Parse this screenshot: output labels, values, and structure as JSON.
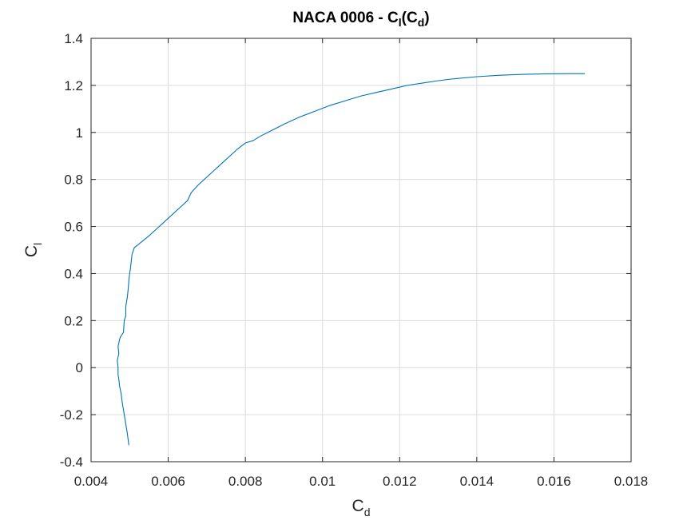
{
  "chart_data": {
    "type": "line",
    "title": {
      "main": "NACA 0006 - C",
      "sub1": "l",
      "mid": "(C",
      "sub2": "d",
      "end": ")"
    },
    "xlabel": {
      "main": "C",
      "sub": "d"
    },
    "ylabel": {
      "main": "C",
      "sub": "l"
    },
    "xlim": [
      0.004,
      0.018
    ],
    "ylim": [
      -0.4,
      1.4
    ],
    "xticks": [
      0.004,
      0.006,
      0.008,
      0.01,
      0.012,
      0.014,
      0.016,
      0.018
    ],
    "xtick_labels": [
      "0.004",
      "0.006",
      "0.008",
      "0.01",
      "0.012",
      "0.014",
      "0.016",
      "0.018"
    ],
    "yticks": [
      -0.4,
      -0.2,
      0,
      0.2,
      0.4,
      0.6,
      0.8,
      1,
      1.2,
      1.4
    ],
    "ytick_labels": [
      "-0.4",
      "-0.2",
      "0",
      "0.2",
      "0.4",
      "0.6",
      "0.8",
      "1",
      "1.2",
      "1.4"
    ],
    "grid": true,
    "colors": {
      "line": "#0072BD",
      "grid": "#dcdcdc",
      "axes": "#262626"
    },
    "series": [
      {
        "x": [
          0.00498,
          0.00494,
          0.0049,
          0.00486,
          0.00482,
          0.0048,
          0.00478,
          0.00474,
          0.00472,
          0.0047,
          0.0047,
          0.00468,
          0.00472,
          0.0047,
          0.00474,
          0.00476,
          0.0048,
          0.00484,
          0.00486,
          0.0049,
          0.0049,
          0.00494,
          0.00496,
          0.00498,
          0.005,
          0.00502,
          0.00506,
          0.00512,
          0.0052,
          0.00535,
          0.0055,
          0.0057,
          0.0059,
          0.0061,
          0.0063,
          0.0065,
          0.0066,
          0.0068,
          0.007,
          0.0072,
          0.0074,
          0.0076,
          0.0078,
          0.008,
          0.0082,
          0.0084,
          0.0087,
          0.009,
          0.0094,
          0.0098,
          0.0102,
          0.0106,
          0.011,
          0.0114,
          0.0118,
          0.0122,
          0.0126,
          0.013,
          0.0134,
          0.014,
          0.0146,
          0.0152,
          0.0158,
          0.0164,
          0.0168
        ],
        "y": [
          -0.33,
          -0.28,
          -0.24,
          -0.2,
          -0.16,
          -0.14,
          -0.11,
          -0.08,
          -0.05,
          -0.03,
          0.0,
          0.03,
          0.06,
          0.09,
          0.12,
          0.13,
          0.14,
          0.15,
          0.2,
          0.22,
          0.26,
          0.3,
          0.33,
          0.37,
          0.4,
          0.42,
          0.48,
          0.51,
          0.52,
          0.54,
          0.56,
          0.59,
          0.62,
          0.65,
          0.68,
          0.71,
          0.745,
          0.78,
          0.81,
          0.84,
          0.87,
          0.9,
          0.93,
          0.955,
          0.965,
          0.985,
          1.01,
          1.035,
          1.065,
          1.09,
          1.115,
          1.135,
          1.155,
          1.17,
          1.185,
          1.2,
          1.21,
          1.22,
          1.228,
          1.237,
          1.243,
          1.247,
          1.249,
          1.25,
          1.25
        ]
      }
    ]
  }
}
